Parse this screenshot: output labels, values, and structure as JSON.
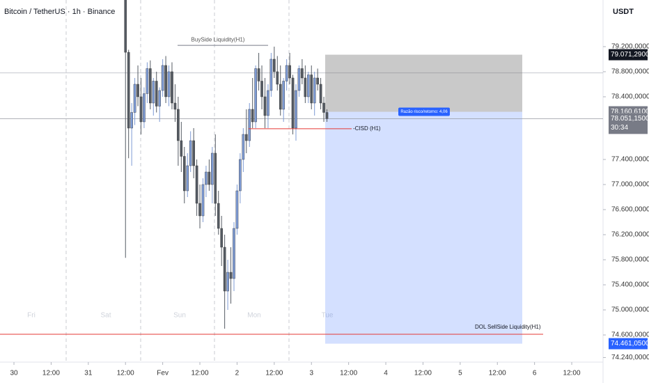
{
  "chart_data": {
    "type": "candlestick",
    "title": "Bitcoin / TetherUS · 1h · Binance",
    "currency": "USDT",
    "x": [
      36,
      37,
      38,
      39,
      40,
      41,
      42,
      43,
      44,
      45,
      46,
      47,
      48,
      49,
      50,
      51,
      52,
      53,
      54,
      55,
      56,
      57,
      58,
      59,
      60,
      61,
      62,
      63,
      64,
      65,
      66,
      67,
      68,
      69,
      70,
      71,
      72,
      73,
      74,
      75,
      76,
      77,
      78,
      79,
      80,
      81,
      82,
      83,
      84,
      85,
      86,
      87,
      88,
      89,
      90,
      91,
      92,
      93,
      94,
      95,
      96,
      97,
      98,
      99,
      100,
      101
    ],
    "open": [
      79950,
      79110,
      77900,
      78150,
      78600,
      78400,
      78000,
      78450,
      78850,
      78300,
      78650,
      78250,
      78500,
      78900,
      78400,
      78800,
      78300,
      78200,
      77700,
      77450,
      76900,
      77300,
      77700,
      77300,
      76700,
      76500,
      77000,
      77200,
      77000,
      77500,
      76700,
      76300,
      76000,
      75300,
      75600,
      75500,
      76300,
      76900,
      77400,
      77800,
      77700,
      78200,
      78000,
      78850,
      78650,
      78400,
      78100,
      78500,
      79000,
      78800,
      78600,
      78200,
      78650,
      78900,
      78700,
      77900,
      78500,
      78850,
      78700,
      78400,
      78750,
      78300,
      78700,
      78600,
      78300,
      78150
    ],
    "high": [
      79990,
      79150,
      78300,
      78700,
      78900,
      78700,
      78550,
      78950,
      78980,
      78700,
      78800,
      78550,
      79000,
      79050,
      78900,
      78950,
      78600,
      78400,
      78000,
      77600,
      77500,
      77850,
      77900,
      77400,
      77000,
      77100,
      77300,
      77400,
      77600,
      77800,
      76900,
      76500,
      76200,
      75800,
      76000,
      76400,
      77000,
      77500,
      77900,
      78200,
      78300,
      78700,
      78900,
      79100,
      78900,
      78700,
      78600,
      79100,
      79200,
      79050,
      78900,
      78700,
      79000,
      79100,
      78750,
      78600,
      78900,
      79000,
      78900,
      78800,
      78900,
      78800,
      78850,
      78700,
      78400,
      78200
    ],
    "low": [
      75830,
      77420,
      77300,
      77950,
      78250,
      77800,
      77900,
      78300,
      78200,
      78100,
      78150,
      78000,
      78400,
      78300,
      78250,
      78200,
      78000,
      77300,
      77200,
      76700,
      76800,
      77200,
      77100,
      76500,
      76300,
      76400,
      76800,
      76900,
      76700,
      76500,
      76200,
      75700,
      74700,
      75000,
      75100,
      75300,
      76200,
      76700,
      77200,
      77500,
      77600,
      77900,
      77900,
      78500,
      78200,
      77900,
      77900,
      78400,
      78700,
      78500,
      78100,
      78000,
      78500,
      78600,
      77800,
      77700,
      78400,
      78600,
      78300,
      78300,
      78200,
      78100,
      78500,
      78200,
      78000,
      78000
    ],
    "close": [
      79110,
      77900,
      78150,
      78600,
      78400,
      78000,
      78450,
      78850,
      78300,
      78650,
      78250,
      78500,
      78900,
      78400,
      78800,
      78300,
      78200,
      77700,
      77450,
      76900,
      77300,
      77700,
      77300,
      76700,
      76500,
      77000,
      77200,
      77000,
      77500,
      76700,
      76300,
      76000,
      75300,
      75600,
      75500,
      76300,
      76900,
      77400,
      77800,
      77700,
      78200,
      78000,
      78850,
      78650,
      78400,
      78100,
      78500,
      79000,
      78800,
      78600,
      78200,
      78650,
      78900,
      78700,
      77900,
      78500,
      78850,
      78700,
      78400,
      78750,
      78300,
      78700,
      78600,
      78300,
      78150,
      78051.15
    ],
    "up_color": "#7e9bd4",
    "down_color": "#555b63",
    "xlim": [
      -4.5,
      190.1
    ],
    "ylim": [
      74167,
      79944
    ],
    "xticks": [
      {
        "value": 0,
        "label": "30"
      },
      {
        "value": 12,
        "label": "12:00"
      },
      {
        "value": 24,
        "label": "31"
      },
      {
        "value": 36,
        "label": "12:00"
      },
      {
        "value": 48,
        "label": "Fev"
      },
      {
        "value": 60,
        "label": "12:00"
      },
      {
        "value": 72,
        "label": "2"
      },
      {
        "value": 84,
        "label": "12:00"
      },
      {
        "value": 96,
        "label": "3"
      },
      {
        "value": 108,
        "label": "12:00"
      },
      {
        "value": 120,
        "label": "4"
      },
      {
        "value": 132,
        "label": "12:00"
      },
      {
        "value": 144,
        "label": "5"
      },
      {
        "value": 156,
        "label": "12:00"
      },
      {
        "value": 168,
        "label": "6"
      },
      {
        "value": 180,
        "label": "12:00"
      }
    ],
    "yticks": [
      {
        "value": 79200,
        "label": "79.200,0000"
      },
      {
        "value": 78800,
        "label": "78.800,0000"
      },
      {
        "value": 78400,
        "label": "78.400,0000"
      },
      {
        "value": 77400,
        "label": "77.400,0000"
      },
      {
        "value": 77000,
        "label": "77.000,0000"
      },
      {
        "value": 76600,
        "label": "76.600,0000"
      },
      {
        "value": 76200,
        "label": "76.200,0000"
      },
      {
        "value": 75800,
        "label": "75.800,0000"
      },
      {
        "value": 75400,
        "label": "75.400,0000"
      },
      {
        "value": 75000,
        "label": "75.000,0000"
      },
      {
        "value": 74600,
        "label": "74.600,0000"
      },
      {
        "value": 74240,
        "label": "74.240,0000"
      }
    ],
    "day_labels": [
      "Fri",
      "Sat",
      "Sun",
      "Mon",
      "Tue"
    ],
    "horizontal_lines": [
      78780
    ],
    "buyside": {
      "label": "BuySide Liquidity(H1)",
      "value": 79220
    },
    "cisd": {
      "label": "-CISD (H1)",
      "value": 77890
    },
    "sellside": {
      "prefix": "DOL",
      "label": "SellSide Liquidity(H1)",
      "value": 74611
    },
    "position": {
      "stop": {
        "value": 79071.29,
        "label": "79.071,2900"
      },
      "entry": {
        "value": 78160.61,
        "label": "78.160,6100"
      },
      "target": {
        "value": 74461.05,
        "label": "74.461,0500"
      },
      "ratio_label": "Razão risco/retorno: 4,06"
    },
    "last_price": {
      "value": 78051.15,
      "label": "78.051,1500"
    },
    "countdown": "30:34"
  }
}
